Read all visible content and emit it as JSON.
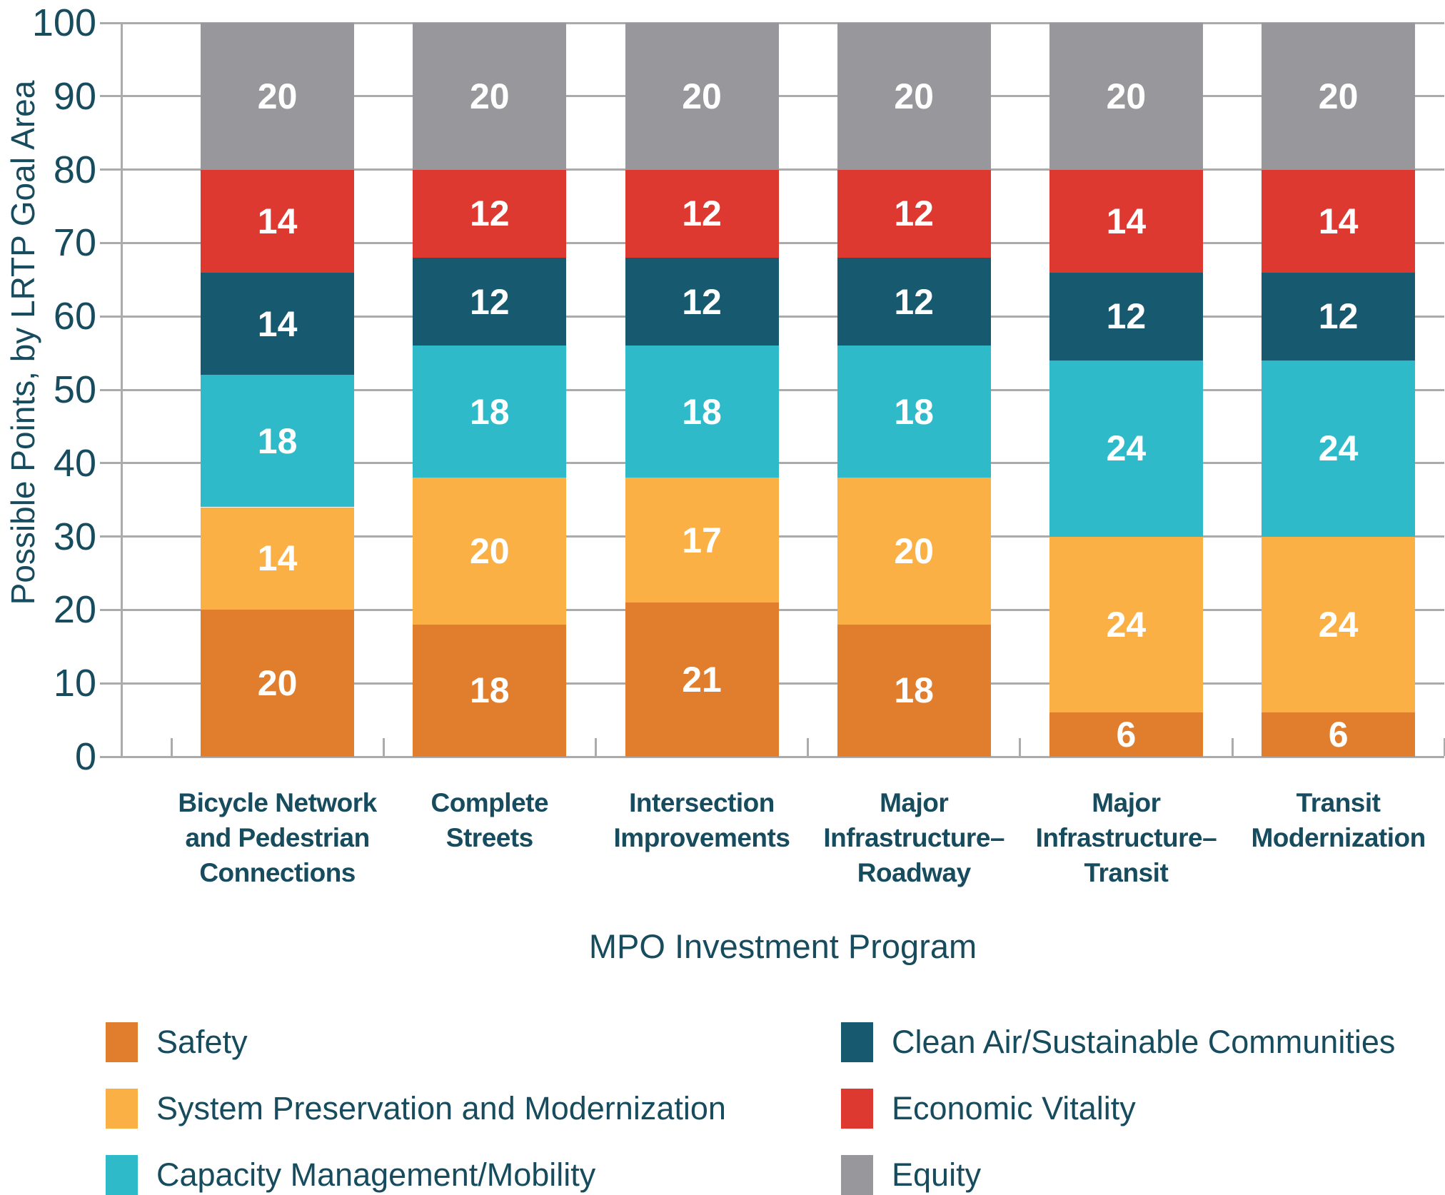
{
  "colors": {
    "background": "#FFFFFF",
    "grid": "#ABABAB",
    "text": "#174B5E",
    "value_label": "#FFFFFF"
  },
  "chart_data": {
    "type": "bar",
    "subtype": "stacked-vertical",
    "xlabel": "MPO Investment Program",
    "ylabel": "Possible Points, by LRTP Goal Area",
    "ylim": [
      0,
      100
    ],
    "ytick_interval": 10,
    "ytick_labels": [
      "0",
      "10",
      "20",
      "30",
      "40",
      "50",
      "60",
      "70",
      "80",
      "90",
      "100"
    ],
    "grid": true,
    "legend_position": "bottom",
    "categories": [
      {
        "id": "bicycle-network",
        "label": "Bicycle Network and Pedestrian Connections",
        "label_lines": [
          "Bicycle Network",
          "and Pedestrian",
          "Connections"
        ]
      },
      {
        "id": "complete-streets",
        "label": "Complete Streets",
        "label_lines": [
          "Complete",
          "Streets"
        ]
      },
      {
        "id": "intersection-improvements",
        "label": "Intersection Improvements",
        "label_lines": [
          "Intersection",
          "Improvements"
        ]
      },
      {
        "id": "major-infrastructure-roadway",
        "label": "Major Infrastructure–Roadway",
        "label_lines": [
          "Major",
          "Infrastructure–",
          "Roadway"
        ]
      },
      {
        "id": "major-infrastructure-transit",
        "label": "Major Infrastructure–Transit",
        "label_lines": [
          "Major",
          "Infrastructure–",
          "Transit"
        ]
      },
      {
        "id": "transit-modernization",
        "label": "Transit Modernization",
        "label_lines": [
          "Transit",
          "Modernization"
        ]
      }
    ],
    "series": [
      {
        "name": "Safety",
        "color": "#E07E2D",
        "values": [
          20,
          18,
          21,
          18,
          6,
          6
        ]
      },
      {
        "name": "System Preservation and Modernization",
        "color": "#FAB044",
        "values": [
          14,
          20,
          17,
          20,
          24,
          24
        ]
      },
      {
        "name": "Capacity Management/Mobility",
        "color": "#2EBAC8",
        "values": [
          18,
          18,
          18,
          18,
          24,
          24
        ]
      },
      {
        "name": "Clean Air/Sustainable Communities",
        "color": "#17596F",
        "values": [
          14,
          12,
          12,
          12,
          12,
          12
        ]
      },
      {
        "name": "Economic Vitality",
        "color": "#DE3931",
        "values": [
          14,
          12,
          12,
          12,
          14,
          14
        ]
      },
      {
        "name": "Equity",
        "color": "#98979B",
        "values": [
          20,
          20,
          20,
          20,
          20,
          20
        ]
      }
    ],
    "legend_columns": [
      [
        0,
        1,
        2
      ],
      [
        3,
        4,
        5
      ]
    ],
    "stack_totals": [
      100,
      100,
      100,
      100,
      100,
      100
    ]
  }
}
